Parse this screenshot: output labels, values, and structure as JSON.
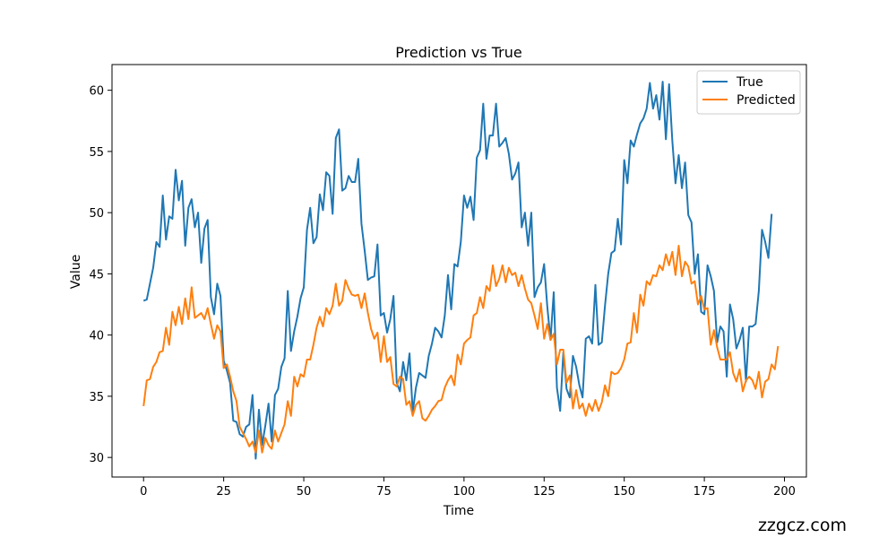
{
  "chart_data": {
    "type": "line",
    "title": "Prediction vs True",
    "xlabel": "Time",
    "ylabel": "Value",
    "xlim": [
      -9.85,
      206.85
    ],
    "ylim": [
      28.4,
      62.1
    ],
    "xticks": [
      0,
      25,
      50,
      75,
      100,
      125,
      150,
      175,
      200
    ],
    "yticks": [
      30,
      35,
      40,
      45,
      50,
      55,
      60
    ],
    "grid": false,
    "legend_position": "top-right",
    "series": [
      {
        "name": "True",
        "color": "#1f77b4",
        "values": [
          42.8,
          42.9,
          44.2,
          45.5,
          47.6,
          47.2,
          51.4,
          47.8,
          49.7,
          49.5,
          53.5,
          51.0,
          52.6,
          47.3,
          50.4,
          51.1,
          48.8,
          50.0,
          45.9,
          48.7,
          49.4,
          43.1,
          41.7,
          44.2,
          43.2,
          37.9,
          37.1,
          36.1,
          33.0,
          32.9,
          31.9,
          31.7,
          32.5,
          32.7,
          35.1,
          29.9,
          33.9,
          31.0,
          32.6,
          34.4,
          31.3,
          35.1,
          35.6,
          37.4,
          38.1,
          43.6,
          38.7,
          40.3,
          41.5,
          43.0,
          43.9,
          48.6,
          50.4,
          47.5,
          48.0,
          51.5,
          50.2,
          53.3,
          53.0,
          49.9,
          56.1,
          56.8,
          51.8,
          52.0,
          53.0,
          52.5,
          52.5,
          54.4,
          49.1,
          46.9,
          44.5,
          44.7,
          44.8,
          47.4,
          41.6,
          41.8,
          40.2,
          41.3,
          43.2,
          36.1,
          35.4,
          37.8,
          36.3,
          38.5,
          33.7,
          35.7,
          36.9,
          36.7,
          36.5,
          38.3,
          39.3,
          40.6,
          40.3,
          39.8,
          41.6,
          44.9,
          42.1,
          45.8,
          45.6,
          47.6,
          51.4,
          50.4,
          51.3,
          49.4,
          54.5,
          55.1,
          58.9,
          54.4,
          56.3,
          56.3,
          58.9,
          55.4,
          55.7,
          56.1,
          54.8,
          52.7,
          53.2,
          54.1,
          48.8,
          50.0,
          47.3,
          50.0,
          43.1,
          43.9,
          44.3,
          45.8,
          42.3,
          39.6,
          43.5,
          35.7,
          33.8,
          38.6,
          35.6,
          34.9,
          38.3,
          37.4,
          35.9,
          34.9,
          39.7,
          39.9,
          39.3,
          44.1,
          39.2,
          39.4,
          42.4,
          45.0,
          46.7,
          46.9,
          49.5,
          47.4,
          54.3,
          52.4,
          55.9,
          55.4,
          56.4,
          57.3,
          57.7,
          58.5,
          60.6,
          58.5,
          59.6,
          57.6,
          60.7,
          56.0,
          60.5,
          55.9,
          52.4,
          54.7,
          52.0,
          54.1,
          49.8,
          49.2,
          45.0,
          46.6,
          41.9,
          41.7,
          45.7,
          44.8,
          43.6,
          39.4,
          40.7,
          40.3,
          36.6,
          42.5,
          41.3,
          38.9,
          39.6,
          40.6,
          36.2,
          40.7,
          40.7,
          40.9,
          43.6,
          48.6,
          47.6,
          46.3,
          49.9
        ]
      },
      {
        "name": "Predicted",
        "color": "#ff7f0e",
        "values": [
          34.2,
          36.3,
          36.4,
          37.4,
          37.8,
          38.6,
          38.7,
          40.6,
          39.2,
          41.9,
          40.8,
          42.3,
          40.9,
          43.0,
          41.3,
          43.9,
          41.4,
          41.6,
          41.8,
          41.3,
          42.2,
          40.9,
          39.7,
          40.8,
          40.3,
          37.3,
          37.6,
          36.6,
          35.4,
          34.6,
          32.5,
          32.0,
          31.5,
          30.9,
          31.3,
          30.4,
          32.2,
          30.4,
          31.6,
          31.0,
          30.7,
          32.2,
          31.3,
          32.0,
          32.7,
          34.6,
          33.4,
          36.6,
          35.8,
          36.8,
          36.6,
          38.0,
          38.0,
          39.2,
          40.6,
          41.5,
          40.7,
          42.2,
          41.7,
          42.4,
          44.2,
          42.4,
          42.8,
          44.5,
          43.8,
          43.3,
          43.2,
          43.3,
          42.2,
          43.4,
          41.8,
          40.5,
          39.7,
          40.2,
          37.8,
          39.9,
          37.8,
          38.2,
          36.0,
          35.8,
          36.6,
          36.4,
          34.3,
          34.6,
          33.4,
          34.3,
          34.6,
          33.2,
          33.0,
          33.4,
          33.9,
          34.2,
          34.6,
          34.7,
          35.7,
          36.3,
          36.7,
          35.9,
          38.4,
          37.6,
          39.3,
          39.6,
          39.8,
          41.6,
          41.8,
          43.1,
          42.2,
          44.0,
          43.6,
          45.7,
          44.0,
          44.6,
          45.7,
          44.3,
          45.5,
          44.9,
          45.1,
          44.0,
          44.9,
          43.8,
          42.9,
          42.6,
          41.6,
          40.5,
          42.6,
          39.7,
          40.9,
          39.6,
          40.1,
          37.6,
          38.8,
          38.8,
          36.1,
          36.7,
          34.0,
          35.5,
          34.0,
          34.4,
          33.4,
          34.4,
          33.8,
          34.7,
          33.8,
          34.5,
          35.9,
          35.0,
          37.0,
          36.8,
          36.9,
          37.3,
          38.0,
          39.3,
          39.4,
          41.8,
          40.2,
          43.3,
          42.4,
          44.4,
          44.1,
          44.9,
          44.8,
          45.7,
          45.3,
          46.6,
          45.7,
          46.8,
          44.9,
          47.3,
          44.8,
          46.0,
          45.6,
          44.2,
          44.4,
          42.5,
          43.2,
          42.1,
          42.2,
          39.2,
          40.4,
          39.0,
          38.0,
          38.0,
          38.0,
          38.6,
          36.9,
          36.2,
          37.2,
          35.4,
          36.3,
          36.6,
          36.3,
          35.6,
          37.0,
          34.9,
          36.2,
          36.4,
          37.6,
          37.2,
          39.1
        ]
      }
    ]
  },
  "watermark": "zzgcz.com"
}
